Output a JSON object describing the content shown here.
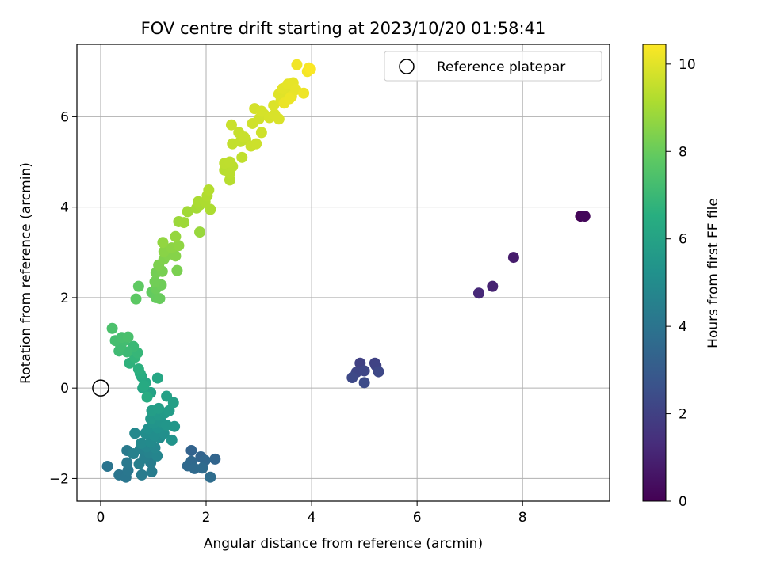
{
  "chart_data": {
    "type": "scatter",
    "title": "FOV centre drift starting at 2023/10/20 01:58:41",
    "xlabel": "Angular distance from reference (arcmin)",
    "ylabel": "Rotation from reference (arcmin)",
    "colorbar_label": "Hours from first FF file",
    "xlim": [
      -0.45,
      9.65
    ],
    "ylim": [
      -2.5,
      7.6
    ],
    "clim": [
      0,
      10.45
    ],
    "x_ticks": [
      0,
      2,
      4,
      6,
      8
    ],
    "y_ticks": [
      -2,
      0,
      2,
      4,
      6
    ],
    "colorbar_ticks": [
      0,
      2,
      4,
      6,
      8,
      10
    ],
    "grid": true,
    "legend": {
      "position": "top-right",
      "entries": [
        "Reference platepar"
      ]
    },
    "reference_point": {
      "x": 0,
      "y": 0
    },
    "colormap": "viridis",
    "points": [
      {
        "x": 9.1,
        "y": 3.8,
        "c": 0.1
      },
      {
        "x": 9.18,
        "y": 3.8,
        "c": 0.2
      },
      {
        "x": 7.83,
        "y": 2.89,
        "c": 0.8
      },
      {
        "x": 7.43,
        "y": 2.25,
        "c": 1.0
      },
      {
        "x": 7.17,
        "y": 2.1,
        "c": 1.2
      },
      {
        "x": 4.92,
        "y": 0.55,
        "c": 2.0
      },
      {
        "x": 5.2,
        "y": 0.55,
        "c": 2.05
      },
      {
        "x": 5.22,
        "y": 0.5,
        "c": 2.1
      },
      {
        "x": 4.85,
        "y": 0.35,
        "c": 2.15
      },
      {
        "x": 5.0,
        "y": 0.38,
        "c": 2.2
      },
      {
        "x": 5.27,
        "y": 0.36,
        "c": 2.25
      },
      {
        "x": 4.77,
        "y": 0.23,
        "c": 2.3
      },
      {
        "x": 5.0,
        "y": 0.12,
        "c": 2.35
      },
      {
        "x": 1.72,
        "y": -1.38,
        "c": 3.3
      },
      {
        "x": 1.9,
        "y": -1.52,
        "c": 3.35
      },
      {
        "x": 2.17,
        "y": -1.57,
        "c": 3.4
      },
      {
        "x": 1.98,
        "y": -1.6,
        "c": 3.45
      },
      {
        "x": 1.72,
        "y": -1.62,
        "c": 3.5
      },
      {
        "x": 1.65,
        "y": -1.72,
        "c": 3.55
      },
      {
        "x": 1.78,
        "y": -1.78,
        "c": 3.6
      },
      {
        "x": 1.93,
        "y": -1.77,
        "c": 3.65
      },
      {
        "x": 2.08,
        "y": -1.97,
        "c": 3.7
      },
      {
        "x": 0.13,
        "y": -1.73,
        "c": 4.0
      },
      {
        "x": 0.35,
        "y": -1.92,
        "c": 4.05
      },
      {
        "x": 0.48,
        "y": -1.97,
        "c": 4.1
      },
      {
        "x": 0.52,
        "y": -1.82,
        "c": 4.15
      },
      {
        "x": 0.5,
        "y": -1.65,
        "c": 4.2
      },
      {
        "x": 0.5,
        "y": -1.38,
        "c": 4.25
      },
      {
        "x": 0.78,
        "y": -1.92,
        "c": 4.3
      },
      {
        "x": 0.97,
        "y": -1.85,
        "c": 4.35
      },
      {
        "x": 0.95,
        "y": -1.65,
        "c": 4.4
      },
      {
        "x": 0.73,
        "y": -1.68,
        "c": 4.45
      },
      {
        "x": 0.83,
        "y": -1.55,
        "c": 4.5
      },
      {
        "x": 0.62,
        "y": -1.45,
        "c": 4.55
      },
      {
        "x": 0.75,
        "y": -1.35,
        "c": 4.6
      },
      {
        "x": 0.92,
        "y": -1.43,
        "c": 4.65
      },
      {
        "x": 1.07,
        "y": -1.5,
        "c": 4.7
      },
      {
        "x": 0.87,
        "y": -1.3,
        "c": 4.75
      },
      {
        "x": 1.03,
        "y": -1.32,
        "c": 4.8
      },
      {
        "x": 0.65,
        "y": -1.0,
        "c": 4.85
      },
      {
        "x": 0.77,
        "y": -1.22,
        "c": 4.9
      },
      {
        "x": 0.95,
        "y": -1.2,
        "c": 4.95
      },
      {
        "x": 1.12,
        "y": -1.1,
        "c": 5.0
      },
      {
        "x": 0.85,
        "y": -1.0,
        "c": 5.05
      },
      {
        "x": 1.02,
        "y": -1.05,
        "c": 5.1
      },
      {
        "x": 1.2,
        "y": -1.0,
        "c": 5.15
      },
      {
        "x": 0.9,
        "y": -0.9,
        "c": 5.2
      },
      {
        "x": 1.08,
        "y": -0.88,
        "c": 5.25
      },
      {
        "x": 1.35,
        "y": -1.15,
        "c": 5.3
      },
      {
        "x": 1.0,
        "y": -0.78,
        "c": 5.35
      },
      {
        "x": 1.15,
        "y": -0.75,
        "c": 5.4
      },
      {
        "x": 1.25,
        "y": -0.82,
        "c": 5.45
      },
      {
        "x": 1.4,
        "y": -0.85,
        "c": 5.5
      },
      {
        "x": 0.95,
        "y": -0.68,
        "c": 5.55
      },
      {
        "x": 1.1,
        "y": -0.6,
        "c": 5.6
      },
      {
        "x": 1.22,
        "y": -0.55,
        "c": 5.65
      },
      {
        "x": 1.3,
        "y": -0.5,
        "c": 5.7
      },
      {
        "x": 0.97,
        "y": -0.5,
        "c": 5.75
      },
      {
        "x": 1.1,
        "y": -0.45,
        "c": 5.8
      },
      {
        "x": 1.38,
        "y": -0.32,
        "c": 5.85
      },
      {
        "x": 1.25,
        "y": -0.18,
        "c": 5.9
      },
      {
        "x": 0.95,
        "y": -0.1,
        "c": 6.0
      },
      {
        "x": 0.8,
        "y": 0.0,
        "c": 6.1
      },
      {
        "x": 1.08,
        "y": 0.22,
        "c": 6.15
      },
      {
        "x": 0.85,
        "y": 0.12,
        "c": 6.2
      },
      {
        "x": 0.78,
        "y": 0.25,
        "c": 6.3
      },
      {
        "x": 0.82,
        "y": 0.05,
        "c": 6.35
      },
      {
        "x": 0.88,
        "y": -0.2,
        "c": 6.4
      },
      {
        "x": 0.75,
        "y": 0.32,
        "c": 6.5
      },
      {
        "x": 0.72,
        "y": 0.42,
        "c": 6.6
      },
      {
        "x": 0.55,
        "y": 0.55,
        "c": 6.7
      },
      {
        "x": 0.65,
        "y": 0.68,
        "c": 6.8
      },
      {
        "x": 0.7,
        "y": 0.78,
        "c": 6.9
      },
      {
        "x": 0.62,
        "y": 0.92,
        "c": 7.0
      },
      {
        "x": 0.5,
        "y": 0.8,
        "c": 7.05
      },
      {
        "x": 0.35,
        "y": 0.82,
        "c": 7.1
      },
      {
        "x": 0.38,
        "y": 0.93,
        "c": 7.15
      },
      {
        "x": 0.45,
        "y": 1.05,
        "c": 7.2
      },
      {
        "x": 0.28,
        "y": 1.05,
        "c": 7.25
      },
      {
        "x": 0.4,
        "y": 1.12,
        "c": 7.3
      },
      {
        "x": 0.52,
        "y": 1.13,
        "c": 7.35
      },
      {
        "x": 0.22,
        "y": 1.32,
        "c": 7.4
      },
      {
        "x": 0.67,
        "y": 1.97,
        "c": 7.8
      },
      {
        "x": 0.72,
        "y": 2.25,
        "c": 7.85
      },
      {
        "x": 0.97,
        "y": 2.12,
        "c": 7.9
      },
      {
        "x": 1.05,
        "y": 2.0,
        "c": 7.95
      },
      {
        "x": 1.12,
        "y": 1.98,
        "c": 8.0
      },
      {
        "x": 1.05,
        "y": 2.2,
        "c": 8.05
      },
      {
        "x": 1.15,
        "y": 2.28,
        "c": 8.1
      },
      {
        "x": 1.03,
        "y": 2.35,
        "c": 8.15
      },
      {
        "x": 1.05,
        "y": 2.55,
        "c": 8.2
      },
      {
        "x": 1.17,
        "y": 2.58,
        "c": 8.25
      },
      {
        "x": 1.45,
        "y": 2.6,
        "c": 8.3
      },
      {
        "x": 1.1,
        "y": 2.72,
        "c": 8.35
      },
      {
        "x": 1.2,
        "y": 2.85,
        "c": 8.4
      },
      {
        "x": 1.28,
        "y": 2.95,
        "c": 8.45
      },
      {
        "x": 1.42,
        "y": 2.92,
        "c": 8.5
      },
      {
        "x": 1.2,
        "y": 3.02,
        "c": 8.55
      },
      {
        "x": 1.35,
        "y": 3.1,
        "c": 8.6
      },
      {
        "x": 1.48,
        "y": 3.15,
        "c": 8.65
      },
      {
        "x": 1.18,
        "y": 3.22,
        "c": 8.7
      },
      {
        "x": 1.42,
        "y": 3.35,
        "c": 8.75
      },
      {
        "x": 1.88,
        "y": 3.45,
        "c": 8.8
      },
      {
        "x": 1.48,
        "y": 3.68,
        "c": 8.85
      },
      {
        "x": 1.58,
        "y": 3.66,
        "c": 8.9
      },
      {
        "x": 1.65,
        "y": 3.9,
        "c": 8.95
      },
      {
        "x": 1.82,
        "y": 3.98,
        "c": 9.0
      },
      {
        "x": 1.88,
        "y": 4.05,
        "c": 9.05
      },
      {
        "x": 1.85,
        "y": 4.12,
        "c": 9.1
      },
      {
        "x": 2.08,
        "y": 3.95,
        "c": 9.12
      },
      {
        "x": 1.98,
        "y": 4.12,
        "c": 9.15
      },
      {
        "x": 2.02,
        "y": 4.25,
        "c": 9.2
      },
      {
        "x": 2.05,
        "y": 4.38,
        "c": 9.25
      },
      {
        "x": 2.45,
        "y": 4.6,
        "c": 9.3
      },
      {
        "x": 2.35,
        "y": 4.82,
        "c": 9.32
      },
      {
        "x": 2.45,
        "y": 4.75,
        "c": 9.35
      },
      {
        "x": 2.5,
        "y": 4.9,
        "c": 9.38
      },
      {
        "x": 2.35,
        "y": 4.97,
        "c": 9.4
      },
      {
        "x": 2.45,
        "y": 5.0,
        "c": 9.42
      },
      {
        "x": 2.68,
        "y": 5.1,
        "c": 9.45
      },
      {
        "x": 2.5,
        "y": 5.4,
        "c": 9.48
      },
      {
        "x": 2.65,
        "y": 5.45,
        "c": 9.5
      },
      {
        "x": 2.75,
        "y": 5.5,
        "c": 9.52
      },
      {
        "x": 2.62,
        "y": 5.65,
        "c": 9.55
      },
      {
        "x": 2.72,
        "y": 5.55,
        "c": 9.58
      },
      {
        "x": 2.48,
        "y": 5.82,
        "c": 9.6
      },
      {
        "x": 2.85,
        "y": 5.35,
        "c": 9.62
      },
      {
        "x": 2.95,
        "y": 5.4,
        "c": 9.65
      },
      {
        "x": 3.05,
        "y": 5.65,
        "c": 9.68
      },
      {
        "x": 2.88,
        "y": 5.85,
        "c": 9.7
      },
      {
        "x": 3.0,
        "y": 5.95,
        "c": 9.72
      },
      {
        "x": 3.1,
        "y": 6.05,
        "c": 9.75
      },
      {
        "x": 2.92,
        "y": 6.18,
        "c": 9.78
      },
      {
        "x": 3.05,
        "y": 6.12,
        "c": 9.8
      },
      {
        "x": 3.2,
        "y": 5.98,
        "c": 9.82
      },
      {
        "x": 3.3,
        "y": 6.05,
        "c": 9.85
      },
      {
        "x": 3.38,
        "y": 5.95,
        "c": 9.87
      },
      {
        "x": 3.28,
        "y": 6.25,
        "c": 9.9
      },
      {
        "x": 3.42,
        "y": 6.35,
        "c": 9.92
      },
      {
        "x": 3.38,
        "y": 6.5,
        "c": 9.95
      },
      {
        "x": 3.5,
        "y": 6.45,
        "c": 9.97
      },
      {
        "x": 3.6,
        "y": 6.58,
        "c": 10.0
      },
      {
        "x": 3.45,
        "y": 6.62,
        "c": 10.02
      },
      {
        "x": 3.55,
        "y": 6.72,
        "c": 10.05
      },
      {
        "x": 3.65,
        "y": 6.75,
        "c": 10.07
      },
      {
        "x": 3.7,
        "y": 6.6,
        "c": 10.1
      },
      {
        "x": 3.62,
        "y": 6.45,
        "c": 10.12
      },
      {
        "x": 3.48,
        "y": 6.3,
        "c": 10.15
      },
      {
        "x": 3.58,
        "y": 6.4,
        "c": 10.17
      },
      {
        "x": 3.85,
        "y": 6.52,
        "c": 10.2
      },
      {
        "x": 3.72,
        "y": 7.15,
        "c": 10.25
      },
      {
        "x": 3.92,
        "y": 7.0,
        "c": 10.3
      },
      {
        "x": 3.95,
        "y": 7.08,
        "c": 10.35
      },
      {
        "x": 3.98,
        "y": 7.05,
        "c": 10.4
      }
    ]
  }
}
